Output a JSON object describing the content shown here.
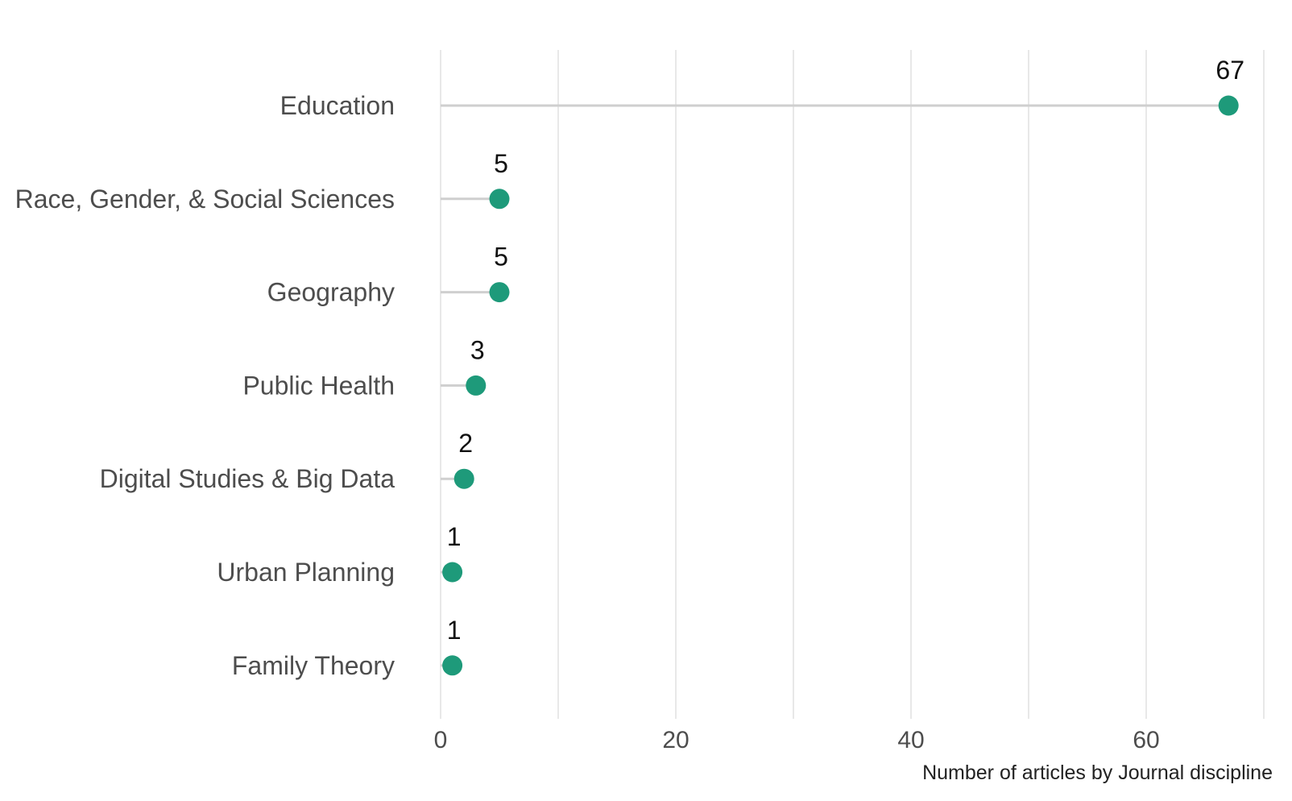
{
  "chart_data": {
    "type": "lollipop",
    "orientation": "horizontal",
    "categories": [
      "Education",
      "Race, Gender, & Social Sciences",
      "Geography",
      "Public Health",
      "Digital Studies & Big Data",
      "Urban Planning",
      "Family Theory"
    ],
    "values": [
      67,
      5,
      5,
      3,
      2,
      1,
      1
    ],
    "data_labels": [
      "67",
      "5",
      "5",
      "3",
      "2",
      "1",
      "1"
    ],
    "xlabel": "Number of articles by Journal discipline",
    "ylabel": "",
    "xlim": [
      0,
      70
    ],
    "xticks": [
      0,
      20,
      40,
      60
    ],
    "xtick_labels": [
      "0",
      "20",
      "40",
      "60"
    ],
    "minor_gridlines": [
      10,
      30,
      50,
      70
    ],
    "grid": true,
    "colors": {
      "point": "#1e9a7a",
      "stem": "#cfcfcf",
      "grid": "#e3e3e3",
      "category_text": "#4d4d4d",
      "data_label_text": "#111111"
    }
  }
}
